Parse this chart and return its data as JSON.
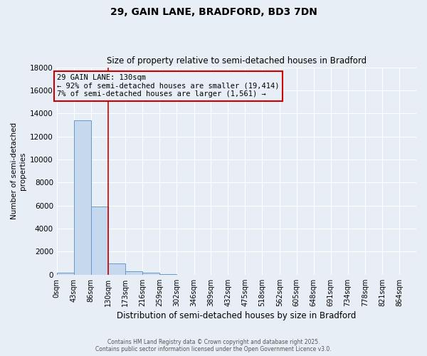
{
  "title": "29, GAIN LANE, BRADFORD, BD3 7DN",
  "subtitle": "Size of property relative to semi-detached houses in Bradford",
  "xlabel": "Distribution of semi-detached houses by size in Bradford",
  "ylabel": "Number of semi-detached\nproperties",
  "annotation_line1": "29 GAIN LANE: 130sqm",
  "annotation_line2": "← 92% of semi-detached houses are smaller (19,414)",
  "annotation_line3": "7% of semi-detached houses are larger (1,561) →",
  "property_size": 130,
  "bin_width": 43,
  "bin_edges": [
    0,
    43,
    86,
    130,
    173,
    216,
    259,
    302,
    346,
    389,
    432,
    475,
    518,
    562,
    605,
    648,
    691,
    734,
    778,
    821,
    864
  ],
  "bar_heights": [
    150,
    13400,
    5900,
    950,
    300,
    150,
    50,
    0,
    0,
    0,
    0,
    0,
    0,
    0,
    0,
    0,
    0,
    0,
    0,
    0
  ],
  "bar_color": "#c5d8ee",
  "bar_edge_color": "#6699cc",
  "red_line_color": "#cc0000",
  "annotation_box_color": "#cc0000",
  "background_color": "#e8eef5",
  "ylim": [
    0,
    18000
  ],
  "yticks": [
    0,
    2000,
    4000,
    6000,
    8000,
    10000,
    12000,
    14000,
    16000,
    18000
  ],
  "footer_line1": "Contains HM Land Registry data © Crown copyright and database right 2025.",
  "footer_line2": "Contains public sector information licensed under the Open Government Licence v3.0."
}
